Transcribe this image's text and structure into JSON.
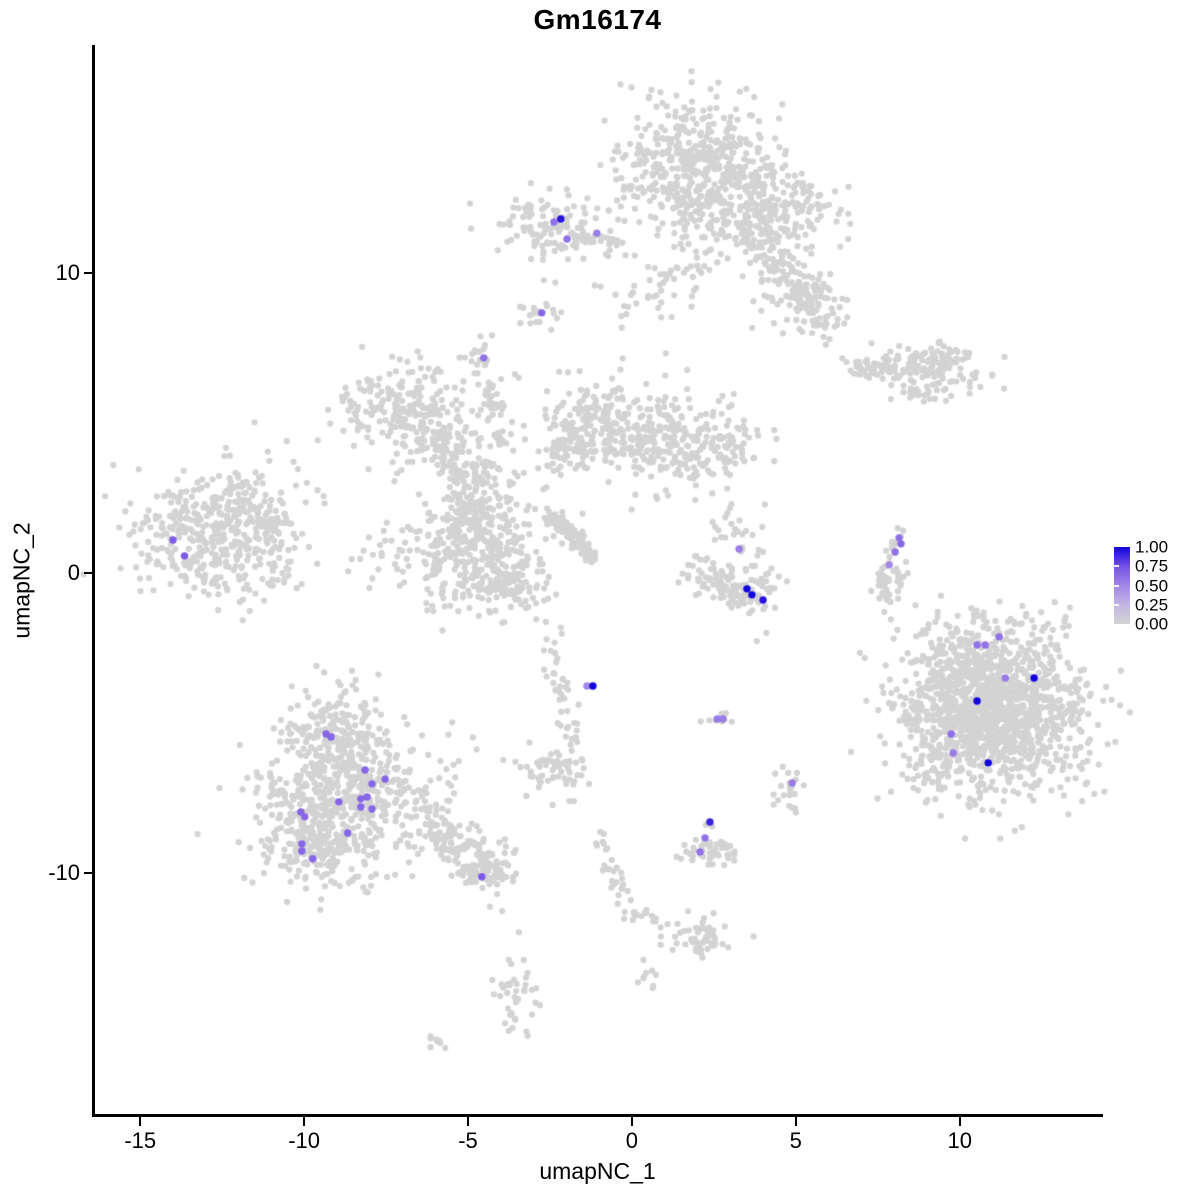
{
  "figure": {
    "title": "Gm16174"
  },
  "axes": {
    "x": {
      "label": "umapNC_1",
      "tick_labels": [
        "-15",
        "-10",
        "-5",
        "0",
        "5",
        "10"
      ],
      "tick_values": [
        -15,
        -10,
        -5,
        0,
        5,
        10
      ]
    },
    "y": {
      "label": "umapNC_2",
      "tick_labels": [
        "10",
        "0",
        "-10"
      ],
      "tick_values": [
        10,
        0,
        -10
      ]
    }
  },
  "legend": {
    "labels": [
      "1.00",
      "0.75",
      "0.50",
      "0.25",
      "0.00"
    ],
    "values": [
      1,
      0.75,
      0.5,
      0.25,
      0
    ],
    "notches": [
      0.75,
      0.5,
      0.25
    ],
    "gradient_top": "#1203dd",
    "gradient_bottom": "#d3d3d3"
  },
  "chart_data": {
    "type": "scatter",
    "title": "Gm16174",
    "xlabel": "umapNC_1",
    "ylabel": "umapNC_2",
    "xlim": [
      -16.38,
      14.28
    ],
    "ylim": [
      -18.07,
      17.6
    ],
    "grid": false,
    "legend_position": "right",
    "color_scale_limits": [
      0,
      1
    ],
    "point_color_low": "#d3d3d3",
    "point_color_high": "#1203dd",
    "palette": [
      [
        0,
        "#d3d3d3"
      ],
      [
        0.25,
        "#c2b6e4"
      ],
      [
        0.5,
        "#a287e6"
      ],
      [
        0.75,
        "#7450e8"
      ],
      [
        1,
        "#1203dd"
      ]
    ],
    "background_clusters": [
      [
        "g",
        1.92,
        13.6,
        1.2,
        1.15,
        520
      ],
      [
        "g",
        4.2,
        12.05,
        0.95,
        0.8,
        220
      ],
      [
        "l",
        3.7,
        11.2,
        6.0,
        8.4,
        0.35,
        140
      ],
      [
        "g",
        5.15,
        9.0,
        0.55,
        0.5,
        50
      ],
      [
        "g",
        0.3,
        9.3,
        0.75,
        0.55,
        30
      ],
      [
        "g",
        1.7,
        10.05,
        0.4,
        0.3,
        22
      ],
      [
        "g",
        -2.45,
        11.5,
        0.8,
        0.55,
        120
      ],
      [
        "l",
        -1.8,
        11.25,
        -0.4,
        11.0,
        0.12,
        22
      ],
      [
        "g",
        -2.78,
        8.6,
        0.3,
        0.28,
        18
      ],
      [
        "g",
        -4.55,
        7.25,
        0.27,
        0.35,
        18
      ],
      [
        "g",
        -12.7,
        1.3,
        1.25,
        1.05,
        430
      ],
      [
        "l",
        -11.6,
        1.65,
        -10.35,
        1.5,
        0.25,
        26
      ],
      [
        "g",
        -11.85,
        2.75,
        0.4,
        0.45,
        30
      ],
      [
        "g",
        -6.8,
        5.3,
        1.05,
        0.8,
        250
      ],
      [
        "l",
        -6.1,
        4.6,
        -4.9,
        3.3,
        0.3,
        60
      ],
      [
        "g",
        -4.7,
        2.8,
        0.6,
        0.7,
        130
      ],
      [
        "l",
        -4.0,
        4.3,
        -4.35,
        6.3,
        0.15,
        45
      ],
      [
        "g",
        -0.9,
        4.9,
        1.0,
        0.8,
        240
      ],
      [
        "l",
        -2.6,
        3.6,
        -1.6,
        4.3,
        0.25,
        40
      ],
      [
        "g",
        1.95,
        4.2,
        0.95,
        0.75,
        220
      ],
      [
        "g",
        0.4,
        4.3,
        0.5,
        0.4,
        30
      ],
      [
        "l",
        -2.55,
        2.0,
        -1.2,
        0.5,
        0.12,
        110
      ],
      [
        "g",
        -5.0,
        0.6,
        1.25,
        0.95,
        320
      ],
      [
        "g",
        -3.9,
        -0.3,
        0.6,
        0.5,
        80
      ],
      [
        "g",
        -4.9,
        1.9,
        0.5,
        0.45,
        60
      ],
      [
        "l",
        -2.6,
        -1.8,
        -1.75,
        -5.7,
        0.18,
        42
      ],
      [
        "g",
        -2.3,
        -6.6,
        0.55,
        0.38,
        65
      ],
      [
        "l",
        -1.0,
        -8.8,
        -0.2,
        -11.1,
        0.15,
        30
      ],
      [
        "l",
        -0.1,
        -11.4,
        0.9,
        -11.6,
        0.12,
        16
      ],
      [
        "g",
        2.1,
        -12.2,
        0.5,
        0.35,
        55
      ],
      [
        "g",
        0.5,
        -13.5,
        0.15,
        0.3,
        8
      ],
      [
        "g",
        -3.5,
        -14.0,
        0.3,
        0.7,
        40
      ],
      [
        "l",
        -6.1,
        -15.5,
        -5.85,
        -15.85,
        0.08,
        8
      ],
      [
        "g",
        -9.15,
        -5.4,
        0.75,
        0.85,
        190
      ],
      [
        "g",
        -8.5,
        -7.3,
        1.45,
        1.05,
        430
      ],
      [
        "g",
        -9.5,
        -9.0,
        0.95,
        0.75,
        230
      ],
      [
        "l",
        -6.5,
        -8.2,
        -4.2,
        -10.0,
        0.45,
        150
      ],
      [
        "g",
        -4.35,
        -9.9,
        0.35,
        0.3,
        40
      ],
      [
        "l",
        6.5,
        6.85,
        8.2,
        6.8,
        0.18,
        55
      ],
      [
        "g",
        9.15,
        6.95,
        0.75,
        0.5,
        130
      ],
      [
        "l",
        8.4,
        6.15,
        9.05,
        5.8,
        0.1,
        12
      ],
      [
        "a",
        8.25,
        1.35,
        7.45,
        0.2,
        7.85,
        -1.0,
        0.12,
        40
      ],
      [
        "g",
        8.15,
        -0.3,
        0.15,
        0.5,
        12
      ],
      [
        "p",
        [
          [
            7.9,
            -1.55
          ],
          [
            8.1,
            -1.9
          ],
          [
            7.7,
            -1.3
          ]
        ]
      ],
      [
        "a",
        2.0,
        0.3,
        3.0,
        -1.5,
        4.25,
        -0.2,
        0.3,
        130
      ],
      [
        "g",
        3.3,
        1.0,
        0.55,
        0.65,
        30
      ],
      [
        "g",
        11.1,
        -4.4,
        1.3,
        1.35,
        1400
      ],
      [
        "g",
        9.4,
        -5.0,
        0.75,
        1.4,
        150
      ],
      [
        "g",
        2.6,
        -4.9,
        0.22,
        0.12,
        8
      ],
      [
        "p",
        [
          [
            2.1,
            -4.95
          ],
          [
            2.33,
            -8.35
          ],
          [
            2.45,
            -8.45
          ]
        ]
      ],
      [
        "g",
        2.35,
        -9.25,
        0.42,
        0.3,
        45
      ],
      [
        "g",
        4.85,
        -7.15,
        0.25,
        0.35,
        20
      ],
      [
        "p",
        [
          [
            4.55,
            -7.1
          ],
          [
            4.1,
            -2.0
          ],
          [
            2.45,
            2.65
          ],
          [
            2.85,
            1.85
          ],
          [
            7.3,
            -0.6
          ],
          [
            7.55,
            -0.85
          ],
          [
            -4.33,
            -11.13
          ],
          [
            -3.96,
            -11.27
          ],
          [
            0.35,
            -12.9
          ],
          [
            3.81,
            -2.27
          ]
        ]
      ]
    ],
    "expressing_cells": [
      {
        "x": -2.17,
        "y": 11.8,
        "v": 0.95
      },
      {
        "x": -2.38,
        "y": 11.7,
        "v": 0.6
      },
      {
        "x": -1.98,
        "y": 11.13,
        "v": 0.6
      },
      {
        "x": -1.07,
        "y": 11.33,
        "v": 0.55
      },
      {
        "x": -2.75,
        "y": 8.67,
        "v": 0.65
      },
      {
        "x": -4.52,
        "y": 7.17,
        "v": 0.6
      },
      {
        "x": -14.0,
        "y": 1.1,
        "v": 0.7
      },
      {
        "x": -13.65,
        "y": 0.57,
        "v": 0.7
      },
      {
        "x": 8.15,
        "y": 1.17,
        "v": 0.6
      },
      {
        "x": 8.21,
        "y": 0.97,
        "v": 0.65
      },
      {
        "x": 8.03,
        "y": 0.7,
        "v": 0.6
      },
      {
        "x": 7.85,
        "y": 0.27,
        "v": 0.5
      },
      {
        "x": 3.27,
        "y": 0.8,
        "v": 0.55
      },
      {
        "x": 3.51,
        "y": -0.53,
        "v": 1.0
      },
      {
        "x": 3.66,
        "y": -0.73,
        "v": 1.0
      },
      {
        "x": 4.0,
        "y": -0.9,
        "v": 0.95
      },
      {
        "x": -1.19,
        "y": -3.77,
        "v": 1.0
      },
      {
        "x": -1.37,
        "y": -3.77,
        "v": 0.5
      },
      {
        "x": 2.6,
        "y": -4.87,
        "v": 0.55
      },
      {
        "x": 2.78,
        "y": -4.87,
        "v": 0.55
      },
      {
        "x": 2.38,
        "y": -8.3,
        "v": 0.9
      },
      {
        "x": 2.23,
        "y": -8.83,
        "v": 0.6
      },
      {
        "x": 2.08,
        "y": -9.3,
        "v": 0.6
      },
      {
        "x": 4.89,
        "y": -7.0,
        "v": 0.55
      },
      {
        "x": 11.2,
        "y": -2.13,
        "v": 0.6
      },
      {
        "x": 10.53,
        "y": -2.4,
        "v": 0.6
      },
      {
        "x": 10.78,
        "y": -2.4,
        "v": 0.6
      },
      {
        "x": 11.39,
        "y": -3.5,
        "v": 0.55
      },
      {
        "x": 12.27,
        "y": -3.5,
        "v": 1.0
      },
      {
        "x": 10.53,
        "y": -4.27,
        "v": 1.0
      },
      {
        "x": 9.74,
        "y": -5.37,
        "v": 0.6
      },
      {
        "x": 9.8,
        "y": -6.0,
        "v": 0.55
      },
      {
        "x": 10.87,
        "y": -6.33,
        "v": 1.0
      },
      {
        "x": -9.33,
        "y": -5.37,
        "v": 0.65
      },
      {
        "x": -9.18,
        "y": -5.47,
        "v": 0.65
      },
      {
        "x": -8.14,
        "y": -6.57,
        "v": 0.65
      },
      {
        "x": -7.53,
        "y": -6.87,
        "v": 0.65
      },
      {
        "x": -7.93,
        "y": -7.03,
        "v": 0.65
      },
      {
        "x": -8.27,
        "y": -7.53,
        "v": 0.65
      },
      {
        "x": -8.08,
        "y": -7.47,
        "v": 0.65
      },
      {
        "x": -8.27,
        "y": -7.8,
        "v": 0.65
      },
      {
        "x": -7.93,
        "y": -7.87,
        "v": 0.65
      },
      {
        "x": -8.94,
        "y": -7.63,
        "v": 0.65
      },
      {
        "x": -10.1,
        "y": -7.97,
        "v": 0.65
      },
      {
        "x": -9.98,
        "y": -8.13,
        "v": 0.65
      },
      {
        "x": -8.67,
        "y": -8.67,
        "v": 0.65
      },
      {
        "x": -10.07,
        "y": -9.03,
        "v": 0.65
      },
      {
        "x": -10.07,
        "y": -9.27,
        "v": 0.65
      },
      {
        "x": -9.74,
        "y": -9.53,
        "v": 0.65
      },
      {
        "x": -4.58,
        "y": -10.13,
        "v": 0.7
      }
    ]
  }
}
